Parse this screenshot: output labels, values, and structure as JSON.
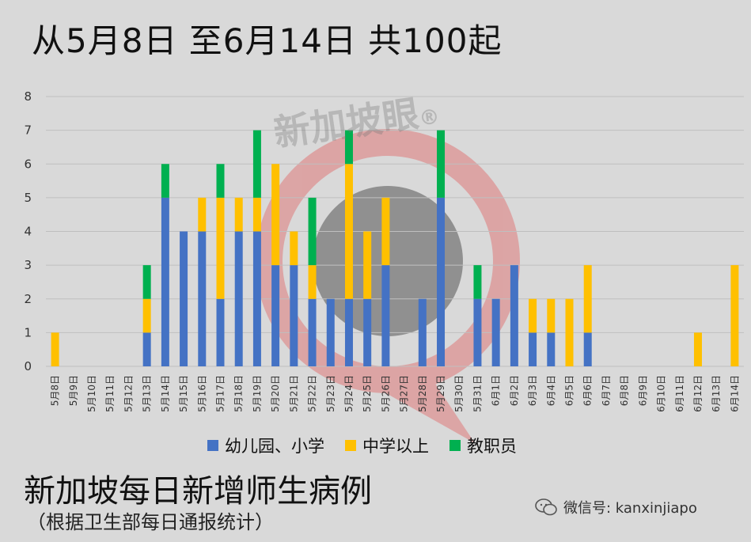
{
  "title": "从5月8日 至6月14日 共100起",
  "subtitle": "新加坡每日新增师生病例",
  "source_note": "（根据卫生部每日通报统计）",
  "wechat": "微信号: kanxinjiapo",
  "watermark": "新加坡眼",
  "watermark_mark": "®",
  "colors": {
    "kindergarten_primary": "#4472c4",
    "secondary_above": "#ffc000",
    "staff": "#00b050",
    "background": "#d9d9d9",
    "gridline": "#bfbfbf"
  },
  "chart_data": {
    "type": "bar",
    "stacked": true,
    "categories": [
      "5月8日",
      "5月9日",
      "5月10日",
      "5月11日",
      "5月12日",
      "5月13日",
      "5月14日",
      "5月15日",
      "5月16日",
      "5月17日",
      "5月18日",
      "5月19日",
      "5月20日",
      "5月21日",
      "5月22日",
      "5月23日",
      "5月24日",
      "5月25日",
      "5月26日",
      "5月27日",
      "5月28日",
      "5月29日",
      "5月30日",
      "5月31日",
      "6月1日",
      "6月2日",
      "6月3日",
      "6月4日",
      "6月5日",
      "6月6日",
      "6月7日",
      "6月8日",
      "6月9日",
      "6月10日",
      "6月11日",
      "6月12日",
      "6月13日",
      "6月14日"
    ],
    "series": [
      {
        "name": "幼儿园、小学",
        "color": "#4472c4",
        "values": [
          0,
          0,
          0,
          0,
          0,
          1,
          5,
          4,
          4,
          2,
          4,
          4,
          3,
          3,
          2,
          2,
          2,
          2,
          3,
          0,
          2,
          5,
          0,
          2,
          2,
          3,
          1,
          1,
          0,
          1,
          0,
          0,
          0,
          0,
          0,
          0,
          0,
          0
        ]
      },
      {
        "name": "中学以上",
        "color": "#ffc000",
        "values": [
          1,
          0,
          0,
          0,
          0,
          1,
          0,
          0,
          1,
          3,
          1,
          1,
          3,
          1,
          1,
          0,
          4,
          2,
          2,
          0,
          0,
          0,
          0,
          0,
          0,
          0,
          1,
          1,
          2,
          2,
          0,
          0,
          0,
          0,
          0,
          1,
          0,
          3
        ]
      },
      {
        "name": "教职员",
        "color": "#00b050",
        "values": [
          0,
          0,
          0,
          0,
          0,
          1,
          1,
          0,
          0,
          1,
          0,
          2,
          0,
          0,
          2,
          0,
          1,
          0,
          0,
          0,
          0,
          2,
          0,
          1,
          0,
          0,
          0,
          0,
          0,
          0,
          0,
          0,
          0,
          0,
          0,
          0,
          0,
          0
        ]
      }
    ],
    "ylim": [
      0,
      8
    ],
    "yticks": [
      "0",
      "1",
      "2",
      "3",
      "4",
      "5",
      "6",
      "7",
      "8"
    ],
    "grid": true,
    "legend_position": "bottom"
  }
}
